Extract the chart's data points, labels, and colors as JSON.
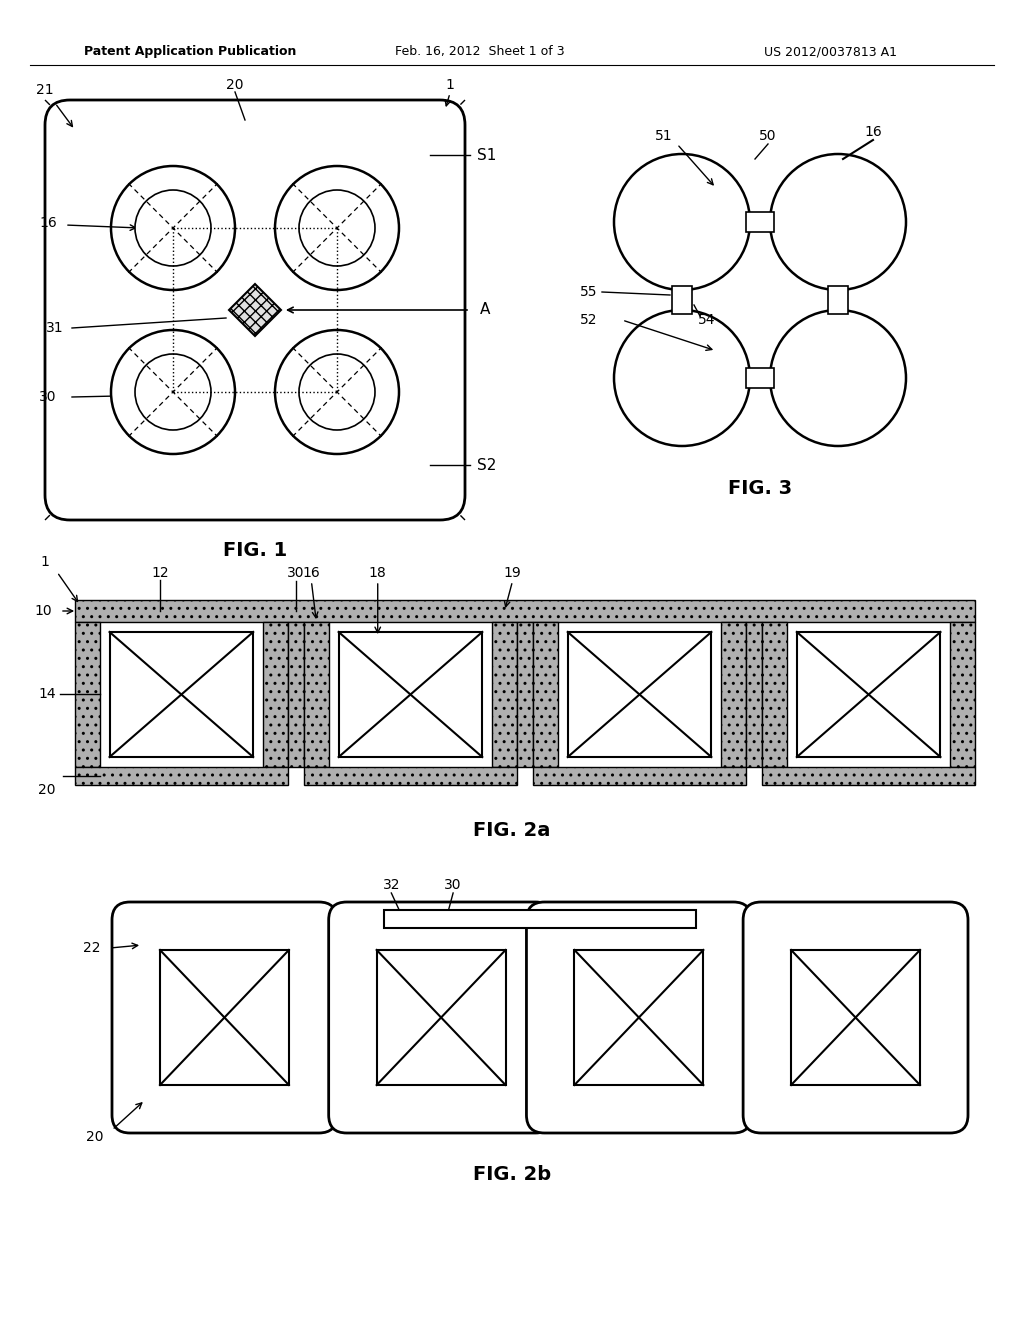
{
  "header_left": "Patent Application Publication",
  "header_mid": "Feb. 16, 2012  Sheet 1 of 3",
  "header_right": "US 2012/0037813 A1",
  "bg_color": "#ffffff",
  "line_color": "#000000",
  "fig1_label": "FIG. 1",
  "fig2a_label": "FIG. 2a",
  "fig2b_label": "FIG. 2b",
  "fig3_label": "FIG. 3"
}
